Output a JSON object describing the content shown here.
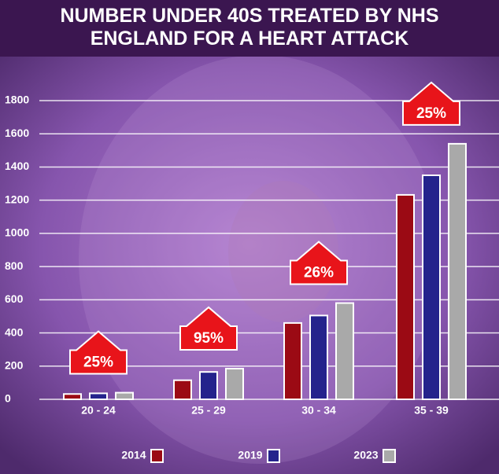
{
  "chart_data": {
    "type": "bar",
    "title": "NUMBER UNDER 40S TREATED BY NHS ENGLAND FOR A HEART ATTACK",
    "categories": [
      "20 - 24",
      "25 - 29",
      "30 - 34",
      "35 - 39"
    ],
    "series": [
      {
        "name": "2014",
        "color": "#9b0a14",
        "values": [
          32,
          115,
          460,
          1232
        ]
      },
      {
        "name": "2019",
        "color": "#24238c",
        "values": [
          36,
          165,
          505,
          1350
        ]
      },
      {
        "name": "2023",
        "color": "#a9a9a9",
        "values": [
          40,
          185,
          580,
          1540
        ]
      }
    ],
    "annotations": [
      "25%",
      "95%",
      "26%",
      "25%"
    ],
    "ylim": [
      0,
      1800
    ],
    "yticks": [
      0,
      200,
      400,
      600,
      800,
      1000,
      1200,
      1400,
      1600,
      1800
    ],
    "grid": true
  }
}
